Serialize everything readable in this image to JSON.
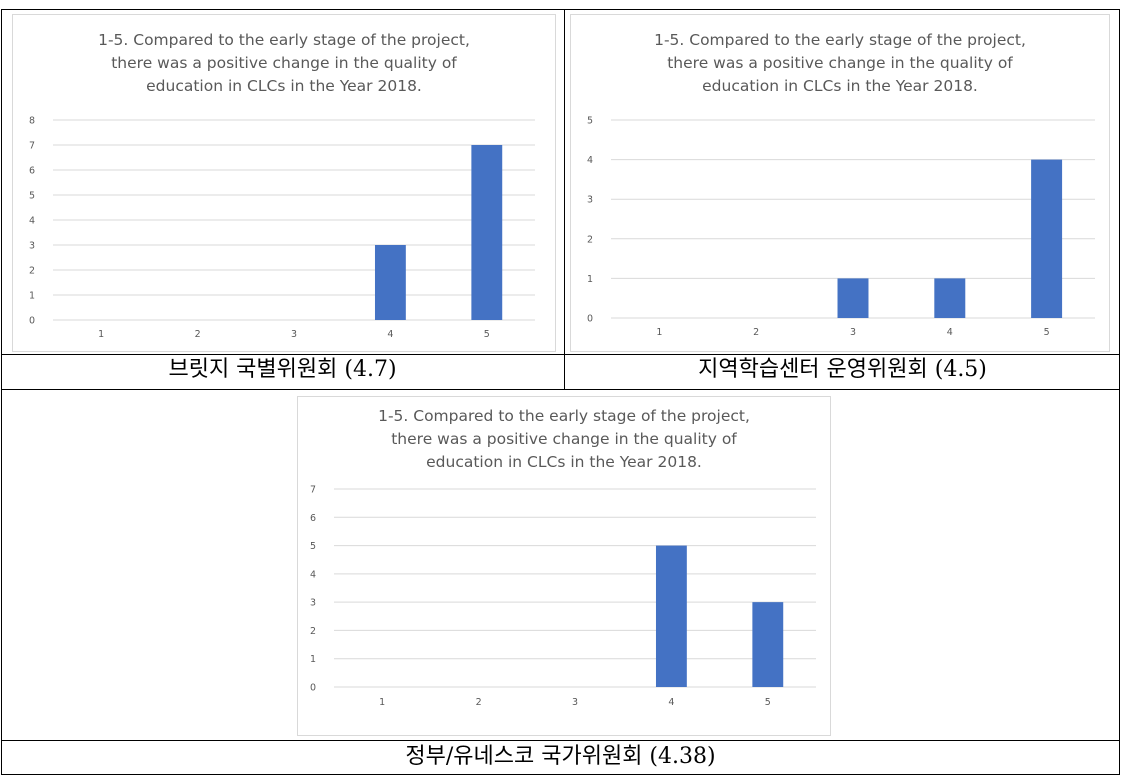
{
  "charts": [
    {
      "title_lines": [
        "1-5. Compared to the early stage of the project,",
        "there was a positive change in the quality of",
        "education in CLCs in the Year 2018."
      ],
      "caption": "브릿지 국별위원회 (4.7)"
    },
    {
      "title_lines": [
        "1-5. Compared to the early stage of the project,",
        "there was a positive change in the quality of",
        "education in CLCs in the Year 2018."
      ],
      "caption": "지역학습센터 운영위원회 (4.5)"
    },
    {
      "title_lines": [
        "1-5. Compared to the early stage of the project,",
        "there was a positive change in the quality of",
        "education in CLCs in the Year 2018."
      ],
      "caption": "정부/유네스코 국가위원회 (4.38)"
    }
  ],
  "colors": {
    "bar": "#4472c4",
    "grid": "#d9d9d9",
    "text": "#595959"
  },
  "chart_data": [
    {
      "type": "bar",
      "title": "1-5. Compared to the early stage of the project, there was a positive change in the quality of education in CLCs in the Year 2018.",
      "categories": [
        "1",
        "2",
        "3",
        "4",
        "5"
      ],
      "values": [
        0,
        0,
        0,
        3,
        7
      ],
      "ylim": [
        0,
        8
      ],
      "yticks": [
        0,
        1,
        2,
        3,
        4,
        5,
        6,
        7,
        8
      ],
      "grid": true
    },
    {
      "type": "bar",
      "title": "1-5. Compared to the early stage of the project, there was a positive change in the quality of education in CLCs in the Year 2018.",
      "categories": [
        "1",
        "2",
        "3",
        "4",
        "5"
      ],
      "values": [
        0,
        0,
        1,
        1,
        4
      ],
      "ylim": [
        0,
        5
      ],
      "yticks": [
        0,
        1,
        2,
        3,
        4,
        5
      ],
      "grid": true
    },
    {
      "type": "bar",
      "title": "1-5. Compared to the early stage of the project, there was a positive change in the quality of education in CLCs in the Year 2018.",
      "categories": [
        "1",
        "2",
        "3",
        "4",
        "5"
      ],
      "values": [
        0,
        0,
        0,
        5,
        3
      ],
      "ylim": [
        0,
        7
      ],
      "yticks": [
        0,
        1,
        2,
        3,
        4,
        5,
        6,
        7
      ],
      "grid": true
    }
  ]
}
